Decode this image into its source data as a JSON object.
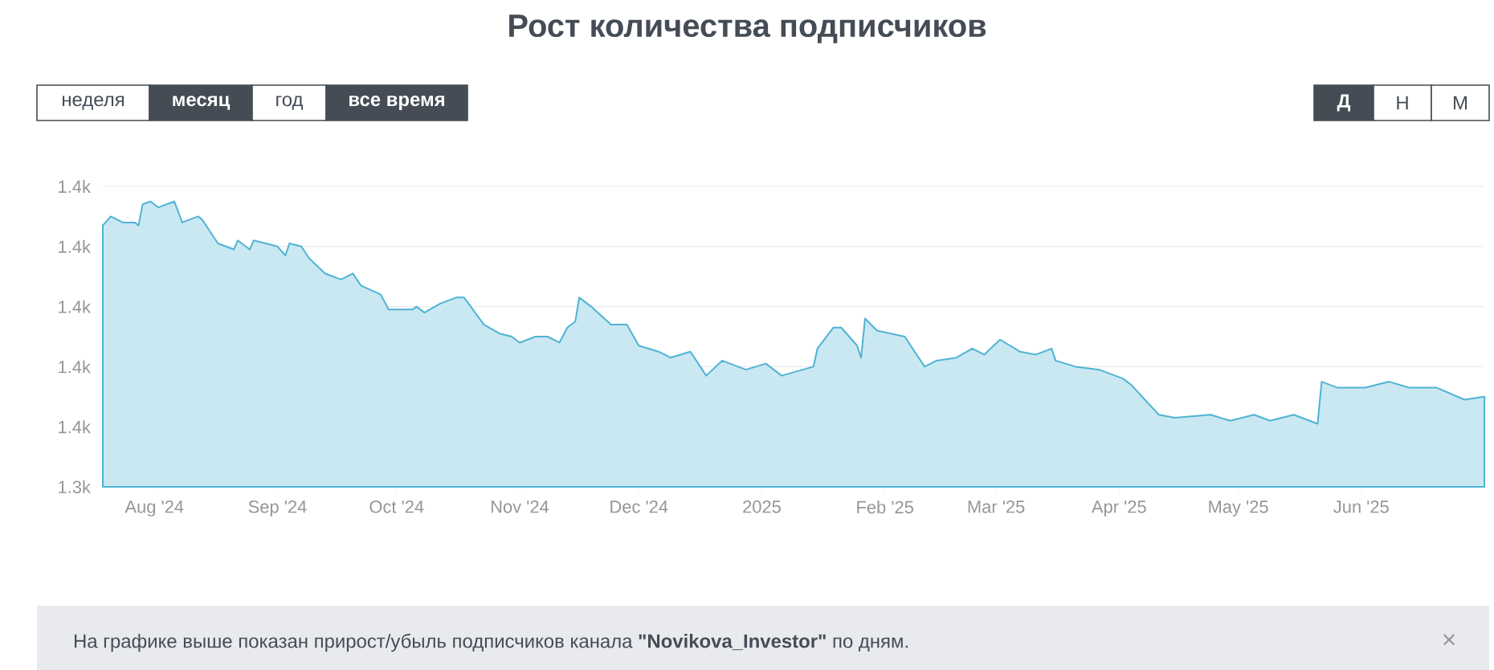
{
  "chart_data": {
    "type": "area",
    "title": "Рост количества подписчиков",
    "xlim": [
      "2024-07-19",
      "2025-07-02"
    ],
    "xticks": [
      {
        "value": "2024-08-01",
        "label": "Aug '24"
      },
      {
        "value": "2024-09-01",
        "label": "Sep '24"
      },
      {
        "value": "2024-10-01",
        "label": "Oct '24"
      },
      {
        "value": "2024-11-01",
        "label": "Nov '24"
      },
      {
        "value": "2024-12-01",
        "label": "Dec '24"
      },
      {
        "value": "2025-01-01",
        "label": "2025"
      },
      {
        "value": "2025-02-01",
        "label": "Feb '25"
      },
      {
        "value": "2025-03-01",
        "label": "Mar '25"
      },
      {
        "value": "2025-04-01",
        "label": "Apr '25"
      },
      {
        "value": "2025-05-01",
        "label": "May '25"
      },
      {
        "value": "2025-06-01",
        "label": "Jun '25"
      }
    ],
    "ylim": [
      1340,
      1440
    ],
    "yticks": [
      {
        "value": 1340,
        "label": "1.3k"
      },
      {
        "value": 1360,
        "label": "1.4k"
      },
      {
        "value": 1380,
        "label": "1.4k"
      },
      {
        "value": 1400,
        "label": "1.4k"
      },
      {
        "value": 1420,
        "label": "1.4k"
      },
      {
        "value": 1440,
        "label": "1.4k"
      }
    ],
    "grid": "y",
    "x": [
      "2024-07-19",
      "2024-07-21",
      "2024-07-24",
      "2024-07-27",
      "2024-07-28",
      "2024-07-29",
      "2024-07-31",
      "2024-08-02",
      "2024-08-06",
      "2024-08-08",
      "2024-08-12",
      "2024-08-13",
      "2024-08-17",
      "2024-08-21",
      "2024-08-22",
      "2024-08-25",
      "2024-08-26",
      "2024-09-01",
      "2024-09-03",
      "2024-09-04",
      "2024-09-07",
      "2024-09-09",
      "2024-09-13",
      "2024-09-17",
      "2024-09-20",
      "2024-09-22",
      "2024-09-27",
      "2024-09-29",
      "2024-10-05",
      "2024-10-06",
      "2024-10-08",
      "2024-10-12",
      "2024-10-16",
      "2024-10-18",
      "2024-10-23",
      "2024-10-27",
      "2024-10-30",
      "2024-11-01",
      "2024-11-05",
      "2024-11-08",
      "2024-11-11",
      "2024-11-13",
      "2024-11-15",
      "2024-11-16",
      "2024-11-19",
      "2024-11-24",
      "2024-11-28",
      "2024-12-01",
      "2024-12-06",
      "2024-12-09",
      "2024-12-14",
      "2024-12-18",
      "2024-12-22",
      "2024-12-28",
      "2025-01-02",
      "2025-01-06",
      "2025-01-14",
      "2025-01-15",
      "2025-01-19",
      "2025-01-21",
      "2025-01-25",
      "2025-01-26",
      "2025-01-27",
      "2025-01-30",
      "2025-02-06",
      "2025-02-11",
      "2025-02-14",
      "2025-02-19",
      "2025-02-23",
      "2025-02-26",
      "2025-03-02",
      "2025-03-07",
      "2025-03-11",
      "2025-03-15",
      "2025-03-16",
      "2025-03-21",
      "2025-03-27",
      "2025-04-02",
      "2025-04-04",
      "2025-04-11",
      "2025-04-15",
      "2025-04-24",
      "2025-04-29",
      "2025-05-05",
      "2025-05-09",
      "2025-05-15",
      "2025-05-21",
      "2025-05-22",
      "2025-05-26",
      "2025-06-02",
      "2025-06-08",
      "2025-06-13",
      "2025-06-20",
      "2025-06-27",
      "2025-07-02"
    ],
    "series": [
      {
        "color": "#4fb3d4",
        "values": [
          1427,
          1430,
          1428,
          1428,
          1427,
          1434,
          1435,
          1433,
          1435,
          1428,
          1430,
          1429,
          1421,
          1419,
          1422,
          1419,
          1422,
          1420,
          1417,
          1421,
          1420,
          1416,
          1411,
          1409,
          1411,
          1407,
          1404,
          1399,
          1399,
          1400,
          1398,
          1401,
          1403,
          1403,
          1394,
          1391,
          1390,
          1388,
          1390,
          1390,
          1388,
          1393,
          1395,
          1403,
          1400,
          1394,
          1394,
          1387,
          1385,
          1383,
          1385,
          1377,
          1382,
          1379,
          1381,
          1377,
          1380,
          1386,
          1393,
          1393,
          1387,
          1383,
          1396,
          1392,
          1390,
          1380,
          1382,
          1383,
          1386,
          1384,
          1389,
          1385,
          1384,
          1386,
          1382,
          1380,
          1379,
          1376,
          1374,
          1364,
          1363,
          1364,
          1362,
          1364,
          1362,
          1364,
          1361,
          1375,
          1373,
          1373,
          1375,
          1373,
          1373,
          1369,
          1370
        ]
      }
    ],
    "annotations": [
      "неделя",
      "месяц",
      "год",
      "все время",
      "Д",
      "Н",
      "М",
      "На графике выше показан прирост/убыль подписчиков канала **\"Novikova_Investor\"** по дням.",
      "×"
    ]
  }
}
